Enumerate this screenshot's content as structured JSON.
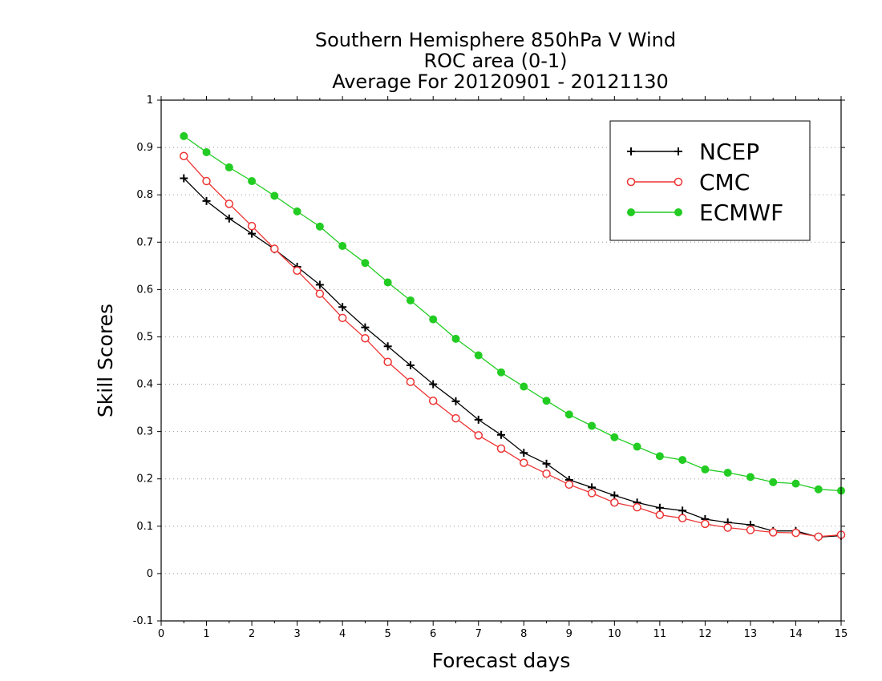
{
  "chart_data": {
    "type": "line",
    "title": [
      "Southern Hemisphere 850hPa V Wind",
      "ROC area (0-1)",
      "Average For 20120901 - 20121130"
    ],
    "xlabel": "Forecast days",
    "ylabel": "Skill Scores",
    "xlim": [
      0,
      15
    ],
    "ylim": [
      -0.1,
      1
    ],
    "xticks": [
      0,
      1,
      2,
      3,
      4,
      5,
      6,
      7,
      8,
      9,
      10,
      11,
      12,
      13,
      14,
      15
    ],
    "xtick_labels": [
      "0",
      "1",
      "2",
      "3",
      "4",
      "5",
      "6",
      "7",
      "8",
      "9",
      "10",
      "11",
      "12",
      "13",
      "14",
      "15"
    ],
    "yticks": [
      -0.1,
      0,
      0.1,
      0.2,
      0.3,
      0.4,
      0.5,
      0.6,
      0.7,
      0.8,
      0.9,
      1
    ],
    "ytick_labels": [
      "-0.1",
      "0",
      "0.1",
      "0.2",
      "0.3",
      "0.4",
      "0.5",
      "0.6",
      "0.7",
      "0.8",
      "0.9",
      "1"
    ],
    "grid": "horizontal dotted",
    "legend_position": "top-right",
    "x": [
      0.5,
      1,
      1.5,
      2,
      2.5,
      3,
      3.5,
      4,
      4.5,
      5,
      5.5,
      6,
      6.5,
      7,
      7.5,
      8,
      8.5,
      9,
      9.5,
      10,
      10.5,
      11,
      11.5,
      12,
      12.5,
      13,
      13.5,
      14,
      14.5,
      15
    ],
    "series": [
      {
        "name": "NCEP",
        "color": "#000000",
        "marker": "plus",
        "values": [
          0.835,
          0.787,
          0.75,
          0.718,
          0.685,
          0.648,
          0.61,
          0.563,
          0.52,
          0.48,
          0.44,
          0.4,
          0.364,
          0.325,
          0.293,
          0.255,
          0.232,
          0.198,
          0.182,
          0.165,
          0.15,
          0.139,
          0.133,
          0.115,
          0.108,
          0.103,
          0.09,
          0.09,
          0.077,
          0.08
        ]
      },
      {
        "name": "CMC",
        "color": "#ee3333",
        "marker": "open-circle",
        "values": [
          0.882,
          0.829,
          0.781,
          0.734,
          0.686,
          0.64,
          0.591,
          0.54,
          0.497,
          0.447,
          0.405,
          0.365,
          0.328,
          0.292,
          0.264,
          0.234,
          0.211,
          0.188,
          0.17,
          0.15,
          0.14,
          0.124,
          0.117,
          0.105,
          0.097,
          0.092,
          0.087,
          0.086,
          0.078,
          0.082
        ]
      },
      {
        "name": "ECMWF",
        "color": "#22cc22",
        "marker": "filled-circle",
        "values": [
          0.924,
          0.89,
          0.858,
          0.829,
          0.798,
          0.765,
          0.733,
          0.692,
          0.656,
          0.615,
          0.577,
          0.537,
          0.496,
          0.461,
          0.425,
          0.395,
          0.365,
          0.336,
          0.312,
          0.288,
          0.268,
          0.248,
          0.24,
          0.22,
          0.213,
          0.204,
          0.193,
          0.19,
          0.178,
          0.175
        ]
      }
    ]
  }
}
